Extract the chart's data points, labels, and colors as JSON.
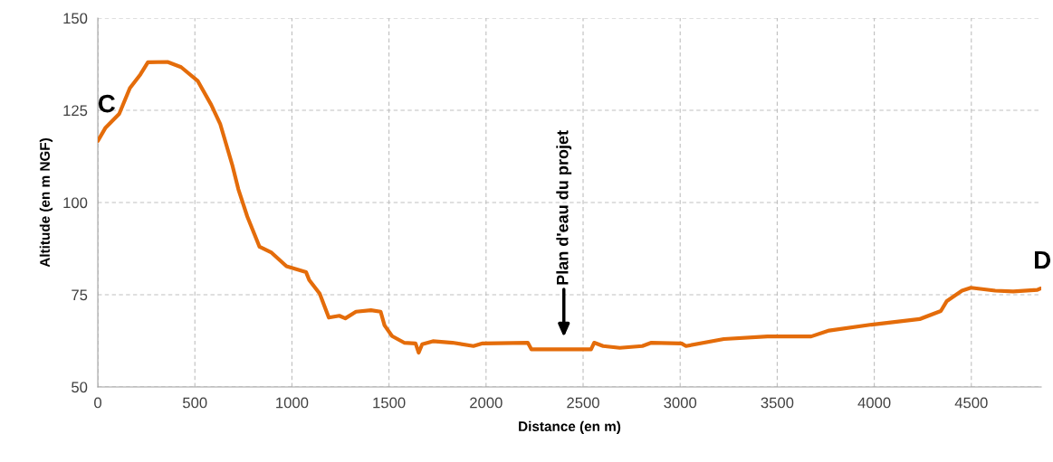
{
  "chart_data": {
    "type": "line",
    "xlabel": "Distance (en m)",
    "ylabel": "Altitude (en m NGF)",
    "xlim": [
      0,
      4860
    ],
    "xticks": [
      0,
      500,
      1000,
      1500,
      2000,
      2500,
      3000,
      3500,
      4000,
      4500
    ],
    "ylim": [
      50,
      150
    ],
    "yticks": [
      50,
      75,
      100,
      125,
      150
    ],
    "grid": true,
    "marker": "none",
    "line_style": "solid",
    "series": [
      {
        "color": "#e46c0a",
        "x": [
          0,
          40,
          110,
          165,
          219,
          258,
          359,
          429,
          514,
          584,
          631,
          693,
          724,
          770,
          833,
          895,
          972,
          1073,
          1089,
          1143,
          1190,
          1244,
          1275,
          1330,
          1407,
          1457,
          1477,
          1516,
          1578,
          1637,
          1653,
          1671,
          1726,
          1827,
          1935,
          1982,
          2215,
          2234,
          2541,
          2557,
          2603,
          2689,
          2805,
          2852,
          3007,
          3030,
          3225,
          3450,
          3489,
          3675,
          3768,
          3986,
          4234,
          4343,
          4374,
          4452,
          4498,
          4623,
          4716,
          4840,
          4856
        ],
        "values": [
          116.7,
          120.3,
          124,
          131,
          134.7,
          138,
          138.1,
          136.7,
          133,
          126.5,
          121.2,
          110.1,
          103.6,
          96.2,
          88.0,
          86.4,
          82.7,
          81.1,
          79,
          75.3,
          68.8,
          69.3,
          68.6,
          70.4,
          70.8,
          70.4,
          66.7,
          63.8,
          62.0,
          61.8,
          59.3,
          61.6,
          62.4,
          62.0,
          61.1,
          61.8,
          62.0,
          60.2,
          60.2,
          62.0,
          61.1,
          60.6,
          61.1,
          62.0,
          61.8,
          61.1,
          63.0,
          63.7,
          63.7,
          63.7,
          65.3,
          66.9,
          68.4,
          70.6,
          73.3,
          76.1,
          76.9,
          76.1,
          75.9,
          76.3,
          76.7
        ]
      }
    ],
    "annotations": [
      {
        "text": "C",
        "x": 0,
        "y": 116.7
      },
      "Plan d'eau du projet",
      {
        "text": "D",
        "x": 4856,
        "y": 76.7
      }
    ]
  }
}
